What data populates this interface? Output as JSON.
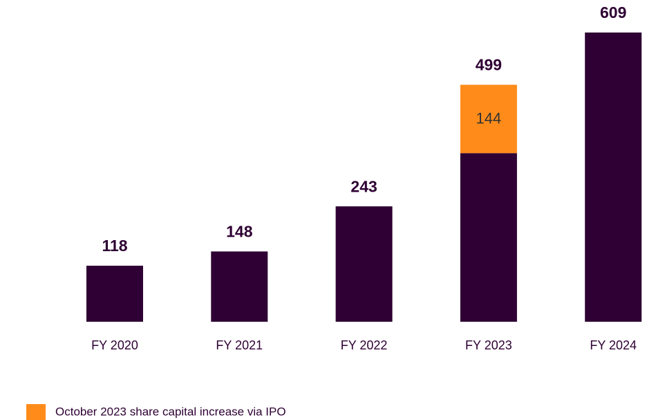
{
  "chart_data": {
    "type": "bar",
    "stacked": true,
    "categories": [
      "FY 2020",
      "FY 2021",
      "FY 2022",
      "FY 2023",
      "FY 2024"
    ],
    "series": [
      {
        "color": "#2e0033",
        "values": [
          118,
          148,
          243,
          355,
          609
        ]
      },
      {
        "name": "October 2023 share capital increase via IPO",
        "color": "#ff8c1a",
        "values": [
          null,
          null,
          null,
          144,
          null
        ],
        "show_values": true
      }
    ],
    "totals": [
      118,
      148,
      243,
      499,
      609
    ]
  }
}
